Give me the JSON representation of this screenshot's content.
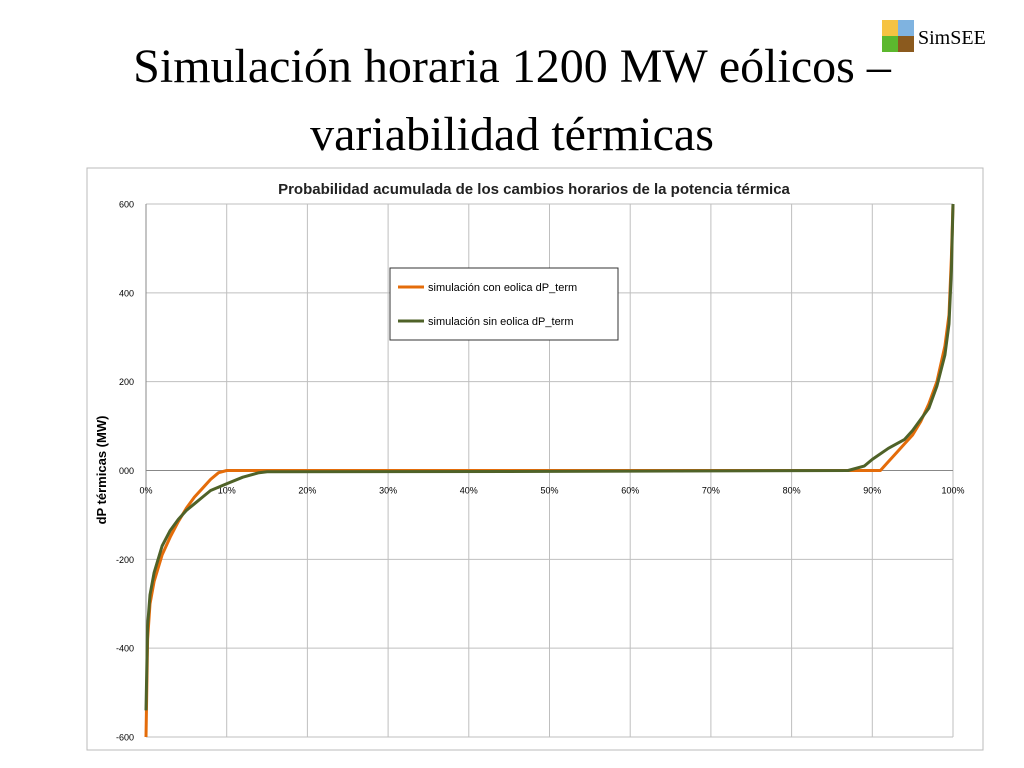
{
  "slide_title": [
    "Simulación horaria 1200 MW eólicos –",
    "variabilidad térmicas"
  ],
  "logo": "SimSEE",
  "chart_data": {
    "type": "line",
    "title": "Probabilidad acumulada de los cambios horarios de la potencia térmica",
    "y_label": "dP térmicas (MW)",
    "xlim": [
      0,
      100
    ],
    "xticks": [
      {
        "value": 0,
        "label": "0%"
      },
      {
        "value": 10,
        "label": "10%"
      },
      {
        "value": 20,
        "label": "20%"
      },
      {
        "value": 30,
        "label": "30%"
      },
      {
        "value": 40,
        "label": "40%"
      },
      {
        "value": 50,
        "label": "50%"
      },
      {
        "value": 60,
        "label": "60%"
      },
      {
        "value": 70,
        "label": "70%"
      },
      {
        "value": 80,
        "label": "80%"
      },
      {
        "value": 90,
        "label": "90%"
      },
      {
        "value": 100,
        "label": "100%"
      }
    ],
    "ylim": [
      -600,
      600
    ],
    "yticks": [
      -600,
      -400,
      -200,
      {
        "value": 0,
        "label": "000"
      },
      200,
      400,
      600
    ],
    "grid": true,
    "series": [
      {
        "name": "simulación con eolica dP_term",
        "color": "#e46c0a",
        "x": [
          0,
          0.2,
          0.5,
          1,
          2,
          3,
          4,
          5,
          6,
          7,
          8,
          9,
          10,
          14,
          50,
          89,
          91,
          92,
          93,
          94,
          95,
          96,
          97,
          98,
          99,
          99.5,
          99.8,
          100
        ],
        "values": [
          -600,
          -380,
          -300,
          -250,
          -190,
          -150,
          -115,
          -85,
          -60,
          -40,
          -20,
          -5,
          0,
          0,
          0,
          0,
          0,
          20,
          40,
          60,
          80,
          110,
          150,
          200,
          280,
          350,
          480,
          600
        ]
      },
      {
        "name": "simulación sin eolica dP_term",
        "color": "#4f6228",
        "x": [
          0,
          0.2,
          0.5,
          1,
          2,
          3,
          4,
          5,
          6,
          7,
          8,
          10,
          12,
          14,
          15,
          50,
          87,
          89,
          90,
          92,
          94,
          95,
          96,
          97,
          98,
          99,
          99.5,
          99.8,
          100
        ],
        "values": [
          -540,
          -350,
          -280,
          -230,
          -170,
          -135,
          -110,
          -90,
          -75,
          -60,
          -45,
          -30,
          -15,
          -5,
          -3,
          -2,
          0,
          10,
          25,
          50,
          70,
          90,
          115,
          140,
          190,
          260,
          330,
          450,
          600
        ]
      }
    ]
  }
}
